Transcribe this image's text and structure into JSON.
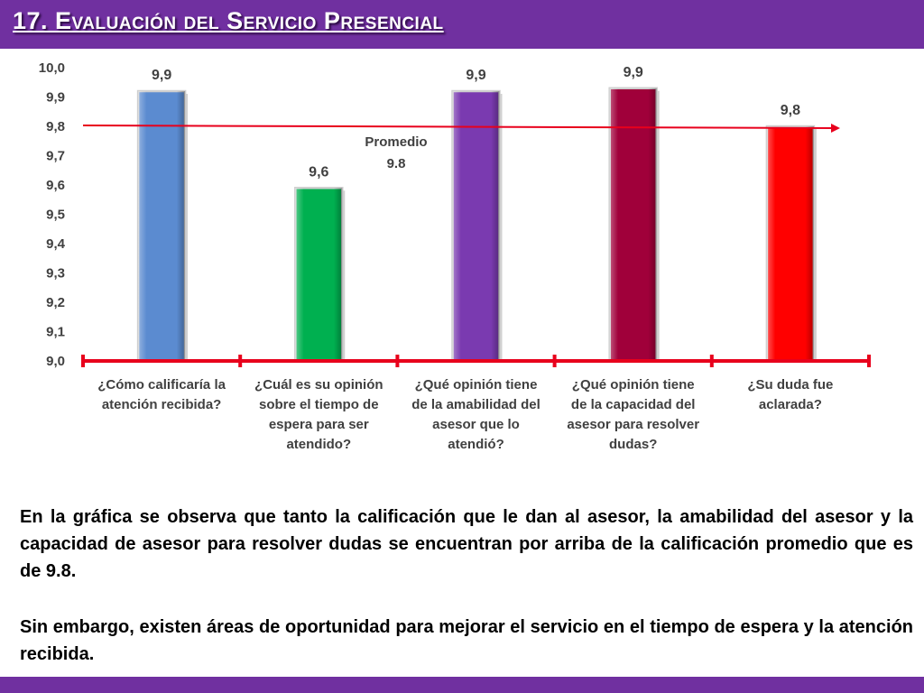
{
  "header": {
    "title": "17. Evaluación del Servicio Presencial"
  },
  "chart_data": {
    "type": "bar",
    "categories": [
      [
        "¿Cómo calificaría la",
        "atención recibida?"
      ],
      [
        "¿Cuál es su opinión",
        "sobre el tiempo de",
        "espera para ser",
        "atendido?"
      ],
      [
        "¿Qué opinión tiene",
        "de la amabilidad del",
        "asesor que lo",
        "atendió?"
      ],
      [
        "¿Qué opinión tiene",
        "de la capacidad del",
        "asesor para resolver",
        "dudas?"
      ],
      [
        "¿Su duda fue",
        "aclarada?"
      ]
    ],
    "values": [
      9.92,
      9.59,
      9.92,
      9.93,
      9.8
    ],
    "data_labels": [
      "9,9",
      "9,6",
      "9,9",
      "9,9",
      "9,8"
    ],
    "bar_colors": [
      "#5b8bd0",
      "#00b050",
      "#7a3ab0",
      "#a0003a",
      "#ff0000"
    ],
    "ylim": [
      9.0,
      10.0
    ],
    "yticks": [
      "9,0",
      "9,1",
      "9,2",
      "9,3",
      "9,4",
      "9,5",
      "9,6",
      "9,7",
      "9,8",
      "9,9",
      "10,0"
    ],
    "average_line": {
      "value": 9.8,
      "label_line1": "Promedio",
      "label_line2": "9.8",
      "color": "#e8001c"
    },
    "axis_color": "#e8001c",
    "grid": false,
    "legend": "none"
  },
  "text": {
    "paragraph1": "En la gráfica se observa que tanto la calificación que le dan al asesor, la amabilidad del asesor y la capacidad de asesor para resolver dudas se encuentran por arriba de la calificación promedio que es de 9.8.",
    "paragraph2": "Sin embargo, existen áreas de oportunidad para mejorar el servicio en el tiempo de espera y la atención recibida."
  },
  "theme": {
    "purple": "#7030a0"
  }
}
